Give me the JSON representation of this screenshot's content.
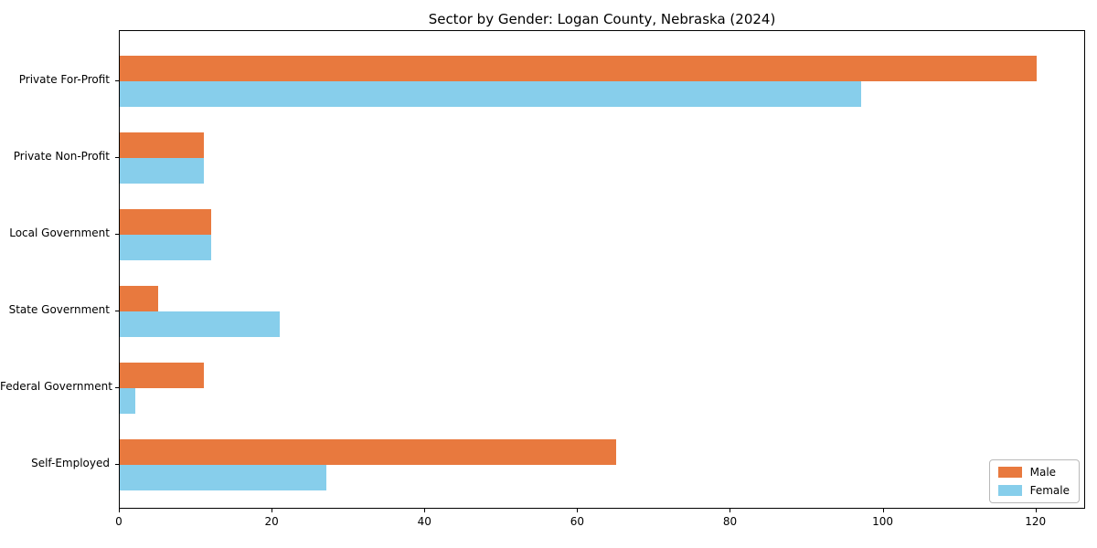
{
  "title": "Sector by Gender: Logan County, Nebraska (2024)",
  "colors": {
    "male": "#e8793e",
    "female": "#87ceeb",
    "spine": "#000000",
    "background": "#ffffff",
    "legend_border": "#b9b9b9",
    "text": "#000000"
  },
  "chart_data": {
    "type": "bar",
    "orientation": "horizontal",
    "title": "Sector by Gender: Logan County, Nebraska (2024)",
    "xlabel": "",
    "ylabel": "",
    "categories": [
      "Private For-Profit",
      "Private Non-Profit",
      "Local Government",
      "State Government",
      "Federal Government",
      "Self-Employed"
    ],
    "series": [
      {
        "name": "Male",
        "color": "#e8793e",
        "values": [
          120,
          11,
          12,
          5,
          11,
          65
        ]
      },
      {
        "name": "Female",
        "color": "#87ceeb",
        "values": [
          97,
          11,
          12,
          21,
          2,
          27
        ]
      }
    ],
    "xlim": [
      0,
      126.5
    ],
    "xticks": [
      0,
      20,
      40,
      60,
      80,
      100,
      120
    ],
    "grid": false,
    "legend_position": "lower right"
  },
  "legend": {
    "items": [
      {
        "label": "Male",
        "color": "#e8793e"
      },
      {
        "label": "Female",
        "color": "#87ceeb"
      }
    ]
  }
}
